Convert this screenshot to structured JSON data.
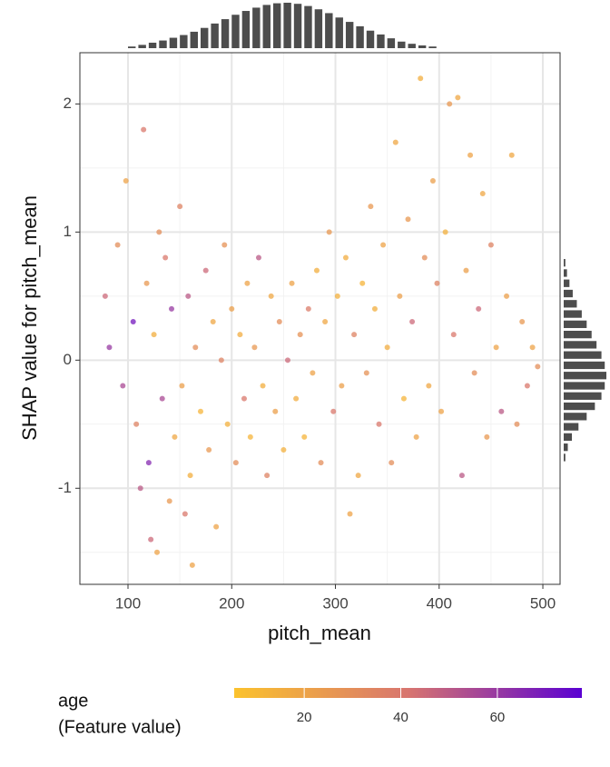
{
  "chart_data": {
    "type": "scatter",
    "x_label": "pitch_mean",
    "y_label": "SHAP value for pitch_mean",
    "xlim": [
      53.6,
      516.6
    ],
    "ylim": [
      -1.75,
      2.4
    ],
    "xticks": [
      100,
      200,
      300,
      400,
      500
    ],
    "yticks": [
      -1,
      0,
      1,
      2
    ],
    "x_minor_grid": [
      150,
      250,
      350,
      450
    ],
    "y_minor_grid": [
      -1.5,
      -0.5,
      0.5,
      1.5
    ],
    "grid": true,
    "x": [
      78,
      82,
      90,
      95,
      98,
      105,
      108,
      112,
      115,
      118,
      120,
      122,
      125,
      128,
      130,
      133,
      136,
      140,
      142,
      145,
      150,
      152,
      155,
      158,
      160,
      162,
      165,
      170,
      175,
      178,
      182,
      185,
      190,
      193,
      196,
      200,
      204,
      208,
      212,
      215,
      218,
      222,
      226,
      230,
      234,
      238,
      242,
      246,
      250,
      254,
      258,
      262,
      266,
      270,
      274,
      278,
      282,
      286,
      290,
      294,
      298,
      302,
      306,
      310,
      314,
      318,
      322,
      326,
      330,
      334,
      338,
      342,
      346,
      350,
      354,
      358,
      362,
      366,
      370,
      374,
      378,
      382,
      386,
      390,
      394,
      398,
      402,
      406,
      410,
      414,
      418,
      422,
      426,
      430,
      434,
      438,
      442,
      446,
      450,
      455,
      460,
      465,
      470,
      475,
      480,
      485,
      490,
      495
    ],
    "y": [
      0.5,
      0.1,
      0.9,
      -0.2,
      1.4,
      0.3,
      -0.5,
      -1.0,
      1.8,
      0.6,
      -0.8,
      -1.4,
      0.2,
      -1.5,
      1.0,
      -0.3,
      0.8,
      -1.1,
      0.4,
      -0.6,
      1.2,
      -0.2,
      -1.2,
      0.5,
      -0.9,
      -1.6,
      0.1,
      -0.4,
      0.7,
      -0.7,
      0.3,
      -1.3,
      0.0,
      0.9,
      -0.5,
      0.4,
      -0.8,
      0.2,
      -0.3,
      0.6,
      -0.6,
      0.1,
      0.8,
      -0.2,
      -0.9,
      0.5,
      -0.4,
      0.3,
      -0.7,
      0.0,
      0.6,
      -0.3,
      0.2,
      -0.6,
      0.4,
      -0.1,
      0.7,
      -0.8,
      0.3,
      1.0,
      -0.4,
      0.5,
      -0.2,
      0.8,
      -1.2,
      0.2,
      -0.9,
      0.6,
      -0.1,
      1.2,
      0.4,
      -0.5,
      0.9,
      0.1,
      -0.8,
      1.7,
      0.5,
      -0.3,
      1.1,
      0.3,
      -0.6,
      2.2,
      0.8,
      -0.2,
      1.4,
      0.6,
      -0.4,
      1.0,
      2.0,
      0.2,
      2.05,
      -0.9,
      0.7,
      1.6,
      -0.1,
      0.4,
      1.3,
      -0.6,
      0.9,
      0.1,
      -0.4,
      0.5,
      1.6,
      -0.5,
      0.3,
      -0.2,
      0.1,
      -0.05
    ],
    "color_values": [
      45,
      60,
      30,
      55,
      20,
      70,
      35,
      50,
      40,
      25,
      65,
      45,
      15,
      20,
      30,
      55,
      40,
      25,
      60,
      18,
      35,
      22,
      40,
      50,
      15,
      20,
      30,
      12,
      45,
      25,
      18,
      20,
      35,
      28,
      14,
      22,
      30,
      16,
      40,
      20,
      12,
      25,
      50,
      15,
      35,
      18,
      22,
      30,
      14,
      45,
      20,
      16,
      28,
      12,
      38,
      20,
      15,
      30,
      18,
      25,
      40,
      14,
      22,
      16,
      20,
      35,
      18,
      12,
      28,
      25,
      15,
      40,
      20,
      16,
      30,
      18,
      22,
      12,
      25,
      45,
      20,
      15,
      30,
      18,
      22,
      35,
      20,
      14,
      25,
      40,
      18,
      50,
      22,
      20,
      30,
      45,
      18,
      25,
      35,
      20,
      50,
      22,
      18,
      30,
      25,
      40,
      20,
      30
    ],
    "color_label": [
      "age",
      "(Feature value)"
    ],
    "color_lim": [
      5.5,
      77.5
    ],
    "color_ticks": [
      20,
      40,
      60
    ],
    "color_scale": [
      "#fbc22d",
      "#d8756f",
      "#5a00d2"
    ],
    "top_histogram": {
      "bins": [
        100,
        110,
        120,
        130,
        140,
        150,
        160,
        170,
        180,
        190,
        200,
        210,
        220,
        230,
        240,
        250,
        260,
        270,
        280,
        290,
        300,
        310,
        320,
        330,
        340,
        350,
        360,
        370,
        380,
        390,
        400
      ],
      "counts": [
        3,
        6,
        10,
        14,
        19,
        24,
        30,
        37,
        45,
        53,
        61,
        68,
        74,
        79,
        82,
        83,
        81,
        77,
        71,
        64,
        56,
        48,
        40,
        32,
        25,
        18,
        12,
        8,
        5,
        3
      ]
    },
    "right_histogram": {
      "bins": [
        -0.8,
        -0.72,
        -0.64,
        -0.56,
        -0.48,
        -0.4,
        -0.32,
        -0.24,
        -0.16,
        -0.08,
        0,
        0.08,
        0.16,
        0.24,
        0.32,
        0.4,
        0.48,
        0.56,
        0.64,
        0.72,
        0.8
      ],
      "counts": [
        2,
        5,
        10,
        18,
        28,
        38,
        46,
        50,
        52,
        50,
        46,
        40,
        34,
        28,
        22,
        16,
        11,
        7,
        4,
        2
      ]
    },
    "histogram_color": "#4d4d4d"
  }
}
